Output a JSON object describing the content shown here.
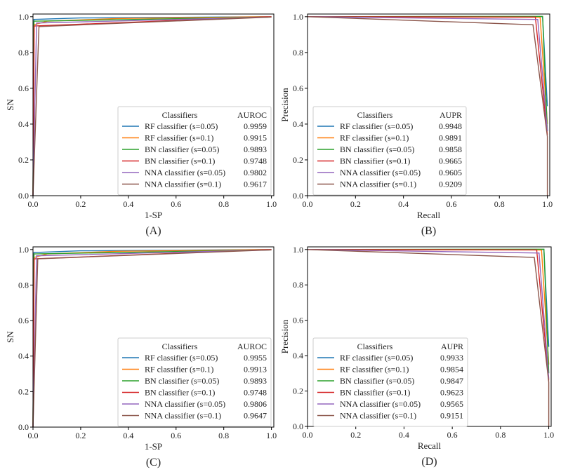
{
  "chart_data": [
    {
      "panel_label": "(A)",
      "type": "line",
      "xlabel": "1-SP",
      "ylabel": "SN",
      "xlim": [
        0,
        1.01
      ],
      "ylim": [
        0,
        1.015
      ],
      "grid": false,
      "xticks": [
        "0.0",
        "0.2",
        "0.4",
        "0.6",
        "0.8",
        "1.0"
      ],
      "yticks": [
        "0.0",
        "0.2",
        "0.4",
        "0.6",
        "0.8",
        "1.0"
      ],
      "legend": {
        "placement": "lower-right",
        "header": "Classifiers",
        "metric_header": "AUROC"
      },
      "series": [
        {
          "name": "RF classifier (s=0.05)",
          "metric": "0.9959",
          "color": "#1f77b4",
          "points": [
            [
              0,
              0
            ],
            [
              0.004,
              0.985
            ],
            [
              0.2,
              0.993
            ],
            [
              1,
              1
            ]
          ]
        },
        {
          "name": "RF classifier (s=0.1)",
          "metric": "0.9915",
          "color": "#ff7f0e",
          "points": [
            [
              0,
              0
            ],
            [
              0.004,
              0.955
            ],
            [
              0.06,
              0.975
            ],
            [
              0.35,
              0.99
            ],
            [
              1,
              1
            ]
          ]
        },
        {
          "name": "BN classifier (s=0.05)",
          "metric": "0.9893",
          "color": "#2ca02c",
          "points": [
            [
              0,
              0
            ],
            [
              0.004,
              0.975
            ],
            [
              1,
              0.998
            ]
          ]
        },
        {
          "name": "BN classifier (s=0.1)",
          "metric": "0.9748",
          "color": "#d62728",
          "points": [
            [
              0,
              0
            ],
            [
              0.005,
              0.948
            ],
            [
              1,
              1
            ]
          ]
        },
        {
          "name": "NNA classifier (s=0.05)",
          "metric": "0.9802",
          "color": "#9467bd",
          "points": [
            [
              0,
              0
            ],
            [
              0.015,
              0.965
            ],
            [
              1,
              0.998
            ]
          ]
        },
        {
          "name": "NNA classifier (s=0.1)",
          "metric": "0.9617",
          "color": "#8c564b",
          "points": [
            [
              0,
              0
            ],
            [
              0.025,
              0.945
            ],
            [
              1,
              0.998
            ]
          ]
        }
      ]
    },
    {
      "panel_label": "(B)",
      "type": "line",
      "xlabel": "Recall",
      "ylabel": "Precision",
      "xlim": [
        0,
        1.01
      ],
      "ylim": [
        0,
        1.015
      ],
      "grid": false,
      "xticks": [
        "0.0",
        "0.2",
        "0.4",
        "0.6",
        "0.8",
        "1.0"
      ],
      "yticks": [
        "0.0",
        "0.2",
        "0.4",
        "0.6",
        "0.8",
        "1.0"
      ],
      "legend": {
        "placement": "lower-center",
        "header": "Classifiers",
        "metric_header": "AUPR"
      },
      "series": [
        {
          "name": "RF classifier (s=0.05)",
          "metric": "0.9948",
          "color": "#1f77b4",
          "points": [
            [
              0,
              1
            ],
            [
              0.98,
              1
            ],
            [
              1,
              0.5
            ]
          ]
        },
        {
          "name": "RF classifier (s=0.1)",
          "metric": "0.9891",
          "color": "#ff7f0e",
          "points": [
            [
              0,
              1
            ],
            [
              0.97,
              0.997
            ],
            [
              1,
              0.4
            ]
          ]
        },
        {
          "name": "BN classifier (s=0.05)",
          "metric": "0.9858",
          "color": "#2ca02c",
          "points": [
            [
              0,
              1
            ],
            [
              0.98,
              1.002
            ],
            [
              1,
              0.36
            ]
          ]
        },
        {
          "name": "BN classifier (s=0.1)",
          "metric": "0.9665",
          "color": "#d62728",
          "points": [
            [
              0,
              1
            ],
            [
              0.95,
              0.998
            ],
            [
              1,
              0.34
            ]
          ]
        },
        {
          "name": "NNA classifier (s=0.05)",
          "metric": "0.9605",
          "color": "#9467bd",
          "points": [
            [
              0,
              1
            ],
            [
              0.96,
              0.985
            ],
            [
              1,
              0.36
            ]
          ]
        },
        {
          "name": "NNA classifier (s=0.1)",
          "metric": "0.9209",
          "color": "#8c564b",
          "points": [
            [
              0,
              1
            ],
            [
              0.94,
              0.955
            ],
            [
              1,
              0.33
            ],
            [
              1,
              0
            ]
          ]
        }
      ]
    },
    {
      "panel_label": "(C)",
      "type": "line",
      "xlabel": "1-SP",
      "ylabel": "SN",
      "xlim": [
        0,
        1.01
      ],
      "ylim": [
        0,
        1.015
      ],
      "grid": false,
      "xticks": [
        "0.0",
        "0.2",
        "0.4",
        "0.6",
        "0.8",
        "1.0"
      ],
      "yticks": [
        "0.0",
        "0.2",
        "0.4",
        "0.6",
        "0.8",
        "1.0"
      ],
      "legend": {
        "placement": "lower-right",
        "header": "Classifiers",
        "metric_header": "AUROC"
      },
      "series": [
        {
          "name": "RF classifier (s=0.05)",
          "metric": "0.9955",
          "color": "#1f77b4",
          "points": [
            [
              0,
              0
            ],
            [
              0.004,
              0.983
            ],
            [
              0.2,
              0.993
            ],
            [
              1,
              1
            ]
          ]
        },
        {
          "name": "RF classifier (s=0.1)",
          "metric": "0.9913",
          "color": "#ff7f0e",
          "points": [
            [
              0,
              0
            ],
            [
              0.004,
              0.955
            ],
            [
              0.06,
              0.975
            ],
            [
              0.35,
              0.99
            ],
            [
              1,
              1
            ]
          ]
        },
        {
          "name": "BN classifier (s=0.05)",
          "metric": "0.9893",
          "color": "#2ca02c",
          "points": [
            [
              0,
              0
            ],
            [
              0.004,
              0.975
            ],
            [
              1,
              0.998
            ]
          ]
        },
        {
          "name": "BN classifier (s=0.1)",
          "metric": "0.9748",
          "color": "#d62728",
          "points": [
            [
              0,
              0
            ],
            [
              0.005,
              0.948
            ],
            [
              1,
              1
            ]
          ]
        },
        {
          "name": "NNA classifier (s=0.05)",
          "metric": "0.9806",
          "color": "#9467bd",
          "points": [
            [
              0,
              0
            ],
            [
              0.015,
              0.965
            ],
            [
              1,
              0.998
            ]
          ]
        },
        {
          "name": "NNA classifier (s=0.1)",
          "metric": "0.9647",
          "color": "#8c564b",
          "points": [
            [
              0,
              0
            ],
            [
              0.02,
              0.948
            ],
            [
              1,
              0.998
            ]
          ]
        }
      ]
    },
    {
      "panel_label": "(D)",
      "type": "line",
      "xlabel": "Recall",
      "ylabel": "Precision",
      "xlim": [
        0,
        1.01
      ],
      "ylim": [
        0,
        1.015
      ],
      "grid": false,
      "xticks": [
        "0.0",
        "0.2",
        "0.4",
        "0.6",
        "0.8",
        "1.0"
      ],
      "yticks": [
        "0.0",
        "0.2",
        "0.4",
        "0.6",
        "0.8",
        "1.0"
      ],
      "legend": {
        "placement": "lower-center",
        "header": "Classifiers",
        "metric_header": "AUPR"
      },
      "series": [
        {
          "name": "RF classifier (s=0.05)",
          "metric": "0.9933",
          "color": "#1f77b4",
          "points": [
            [
              0,
              1
            ],
            [
              0.98,
              1
            ],
            [
              1,
              0.45
            ]
          ]
        },
        {
          "name": "RF classifier (s=0.1)",
          "metric": "0.9854",
          "color": "#ff7f0e",
          "points": [
            [
              0,
              1
            ],
            [
              0.97,
              0.997
            ],
            [
              1,
              0.35
            ]
          ]
        },
        {
          "name": "BN classifier (s=0.05)",
          "metric": "0.9847",
          "color": "#2ca02c",
          "points": [
            [
              0,
              1
            ],
            [
              0.98,
              1.002
            ],
            [
              1,
              0.3
            ]
          ]
        },
        {
          "name": "BN classifier (s=0.1)",
          "metric": "0.9623",
          "color": "#d62728",
          "points": [
            [
              0,
              1
            ],
            [
              0.95,
              0.998
            ],
            [
              1,
              0.26
            ]
          ]
        },
        {
          "name": "NNA classifier (s=0.05)",
          "metric": "0.9565",
          "color": "#9467bd",
          "points": [
            [
              0,
              1
            ],
            [
              0.96,
              0.98
            ],
            [
              1,
              0.27
            ]
          ]
        },
        {
          "name": "NNA classifier (s=0.1)",
          "metric": "0.9151",
          "color": "#8c564b",
          "points": [
            [
              0,
              1
            ],
            [
              0.94,
              0.955
            ],
            [
              1,
              0.25
            ],
            [
              1,
              0
            ]
          ]
        }
      ]
    }
  ]
}
